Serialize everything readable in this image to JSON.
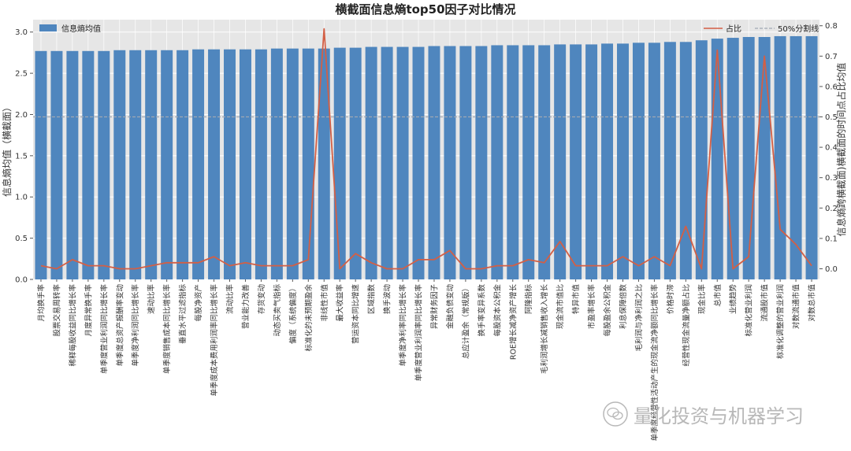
{
  "chart_data": {
    "type": "bar+line",
    "title": "横截面信息熵top50因子对比情况",
    "ylabel_left": "信息熵均值（横截面）",
    "ylabel_right": "信息熵跨横截面)横截面的时间点占比均值",
    "ylim_left": [
      0,
      3.15
    ],
    "ylim_right": [
      -0.035,
      0.82
    ],
    "yticks_left": [
      "0.0",
      "0.5",
      "1.0",
      "1.5",
      "2.0",
      "2.5",
      "3.0"
    ],
    "yticks_right": [
      "0.0",
      "0.1",
      "0.2",
      "0.3",
      "0.4",
      "0.5",
      "0.6",
      "0.7",
      "0.8"
    ],
    "grid": true,
    "legend_left": {
      "position": "top-left",
      "label": "信息熵均值",
      "color": "#4f86be"
    },
    "legend_right": {
      "position": "top-right",
      "ratio_label": "占比",
      "split_label": "50%分割线"
    },
    "categories": [
      "月均换手率",
      "股票交易周转率",
      "稀释每股收益同比增长率",
      "月度异常换手率",
      "单季度营业利润同比增长率",
      "单季度总资产报酬率变动",
      "单季度净利润同比增长率",
      "速动比率",
      "单季度销售成本同比增长率",
      "垂直水平过滤指标",
      "每股净资产",
      "单季度成本费用利润率同比增长率",
      "流动比率",
      "营业能力改善",
      "存货变动",
      "动态买卖气指标",
      "偏度（系统偏度）",
      "标准化的未预期盈余",
      "非线性市值",
      "最大收益率",
      "营运资本同比增速",
      "区域指数",
      "换手波动",
      "单季度净利率同比增长率",
      "单季度营业利润率同比增长率",
      "异常财务因子",
      "金融负债变动",
      "总应计盈余（常规版）",
      "换手率变异系数",
      "每股资本公积金",
      "ROE增长减净资产增长",
      "阿隆指标",
      "毛利润增长减销售收入增长",
      "现金流市值比",
      "特异市值",
      "市盈率增长率",
      "每股盈余公积金",
      "利息保障倍数",
      "毛利润与净利润之比",
      "单季度经营性活动产生的现金流净额同比增长率",
      "价格时滞",
      "经营性现金流量净额占比",
      "现金比率",
      "总市值",
      "业绩趋势",
      "标准化营业利润",
      "流通股市值",
      "标准化调整的营业利润",
      "对数流通市值",
      "对数总市值"
    ],
    "series": [
      {
        "name": "信息熵均值",
        "type": "bar",
        "axis": "left",
        "color": "#4f86be",
        "values": [
          2.77,
          2.77,
          2.77,
          2.77,
          2.77,
          2.78,
          2.78,
          2.78,
          2.78,
          2.78,
          2.79,
          2.79,
          2.79,
          2.79,
          2.79,
          2.8,
          2.8,
          2.8,
          2.8,
          2.81,
          2.81,
          2.82,
          2.82,
          2.82,
          2.82,
          2.83,
          2.83,
          2.83,
          2.83,
          2.84,
          2.84,
          2.84,
          2.84,
          2.85,
          2.85,
          2.85,
          2.86,
          2.86,
          2.87,
          2.87,
          2.88,
          2.88,
          2.9,
          2.92,
          2.93,
          2.94,
          2.94,
          2.95,
          2.95,
          2.95
        ]
      },
      {
        "name": "占比",
        "type": "line",
        "axis": "right",
        "color": "#d35f45",
        "values": [
          0.01,
          0.0,
          0.03,
          0.01,
          0.01,
          0.0,
          0.0,
          0.01,
          0.02,
          0.02,
          0.02,
          0.04,
          0.01,
          0.02,
          0.01,
          0.01,
          0.01,
          0.03,
          0.79,
          0.0,
          0.05,
          0.02,
          0.0,
          0.0,
          0.03,
          0.03,
          0.06,
          0.0,
          0.0,
          0.01,
          0.01,
          0.03,
          0.02,
          0.09,
          0.01,
          0.01,
          0.01,
          0.04,
          0.01,
          0.04,
          0.01,
          0.14,
          0.0,
          0.72,
          0.0,
          0.04,
          0.7,
          0.13,
          0.08,
          0.01
        ]
      },
      {
        "name": "50%分割线",
        "type": "hline",
        "axis": "right",
        "color": "#a0a8b4",
        "value": 0.5
      }
    ]
  },
  "watermark": "量化投资与机器学习"
}
